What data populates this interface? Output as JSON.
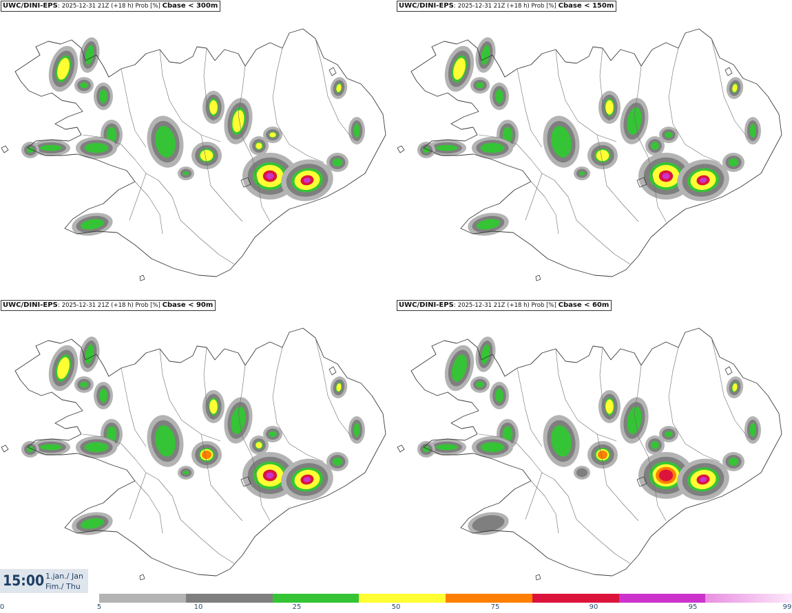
{
  "panels": [
    {
      "model": "UWC/DINI-EPS",
      "sep": ":",
      "info": "2025-12-31 21Z (+18 h) Prob [%]",
      "param": "Cbase < 300m"
    },
    {
      "model": "UWC/DINI-EPS",
      "sep": ":",
      "info": "2025-12-31 21Z (+18 h) Prob [%]",
      "param": "Cbase < 150m"
    },
    {
      "model": "UWC/DINI-EPS",
      "sep": ":",
      "info": "2025-12-31 21Z (+18 h) Prob [%]",
      "param": "Cbase < 90m"
    },
    {
      "model": "UWC/DINI-EPS",
      "sep": ":",
      "info": "2025-12-31 21Z (+18 h) Prob [%]",
      "param": "Cbase < 60m"
    }
  ],
  "valid_time": {
    "time": "15:00",
    "date_line1": "1.jan./ Jan",
    "date_line2": "Fim./ Thu"
  },
  "legend": {
    "ticks": [
      "0",
      "5",
      "10",
      "25",
      "50",
      "75",
      "90",
      "95",
      "99"
    ],
    "bins": [
      {
        "from": "5",
        "to": "10",
        "color": "#b3b3b3"
      },
      {
        "from": "10",
        "to": "25",
        "color": "#7f7f7f"
      },
      {
        "from": "25",
        "to": "50",
        "color": "#35c435"
      },
      {
        "from": "50",
        "to": "75",
        "color": "#ffff33"
      },
      {
        "from": "75",
        "to": "90",
        "color": "#ff7f00"
      },
      {
        "from": "90",
        "to": "95",
        "color": "#dc143c"
      },
      {
        "from": "95",
        "to": "99",
        "color": "#cc33cc"
      },
      {
        "from": "99",
        "to": "",
        "color": "#f6c6f0"
      }
    ]
  },
  "colors": {
    "map_outline": "#3a3a3a",
    "background": "#ffffff",
    "label_text": "#1f3f63"
  }
}
